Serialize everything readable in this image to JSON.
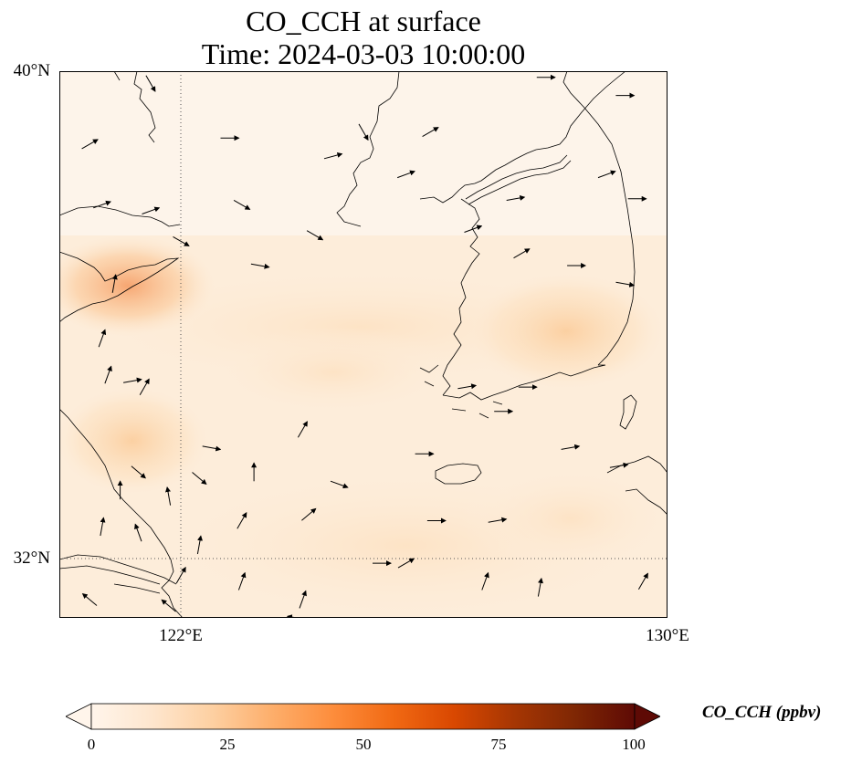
{
  "title": {
    "line1": "CO_CCH at surface",
    "line2": "Time: 2024-03-03 10:00:00"
  },
  "map": {
    "lat_labels": [
      "40°N",
      "32°N"
    ],
    "lon_labels": [
      "122°E",
      "130°E"
    ],
    "extent": {
      "lon_min": 120,
      "lon_max": 130,
      "lat_min": 31,
      "lat_max": 40
    },
    "gridlines": {
      "lat": [
        32
      ],
      "lon": [
        122
      ]
    },
    "coastline_color": "#000000",
    "wind_vectors": [
      [
        121.5,
        39.8,
        60
      ],
      [
        120.5,
        38.8,
        -30
      ],
      [
        122.8,
        38.9,
        0
      ],
      [
        124.5,
        38.6,
        -15
      ],
      [
        125.0,
        39.0,
        60
      ],
      [
        125.7,
        38.3,
        -20
      ],
      [
        120.7,
        37.8,
        -20
      ],
      [
        121.5,
        37.7,
        -20
      ],
      [
        122.0,
        37.2,
        30
      ],
      [
        123.0,
        37.8,
        30
      ],
      [
        123.3,
        36.8,
        10
      ],
      [
        124.2,
        37.3,
        30
      ],
      [
        126.8,
        37.4,
        -20
      ],
      [
        127.6,
        37.0,
        -30
      ],
      [
        128.5,
        36.8,
        0
      ],
      [
        129.3,
        36.5,
        10
      ],
      [
        127.5,
        37.9,
        -10
      ],
      [
        128.0,
        39.9,
        0
      ],
      [
        129.3,
        39.6,
        0
      ],
      [
        129.0,
        38.3,
        -20
      ],
      [
        129.5,
        37.9,
        0
      ],
      [
        126.1,
        39.0,
        -30
      ],
      [
        120.7,
        35.6,
        -70
      ],
      [
        120.8,
        35.0,
        -70
      ],
      [
        121.2,
        34.9,
        -10
      ],
      [
        121.4,
        34.8,
        -60
      ],
      [
        122.5,
        33.8,
        10
      ],
      [
        123.2,
        33.4,
        -90
      ],
      [
        124.0,
        34.1,
        -60
      ],
      [
        124.6,
        33.2,
        20
      ],
      [
        126.7,
        34.8,
        -10
      ],
      [
        127.3,
        34.4,
        0
      ],
      [
        127.7,
        34.8,
        0
      ],
      [
        128.4,
        33.8,
        -10
      ],
      [
        129.2,
        33.5,
        -10
      ],
      [
        121.8,
        33.0,
        -100
      ],
      [
        122.3,
        32.2,
        -80
      ],
      [
        121.3,
        32.4,
        -110
      ],
      [
        123.0,
        32.6,
        -60
      ],
      [
        124.1,
        32.7,
        -40
      ],
      [
        126.0,
        33.7,
        0
      ],
      [
        127.2,
        32.6,
        -10
      ],
      [
        125.3,
        31.9,
        0
      ],
      [
        126.2,
        32.6,
        0
      ],
      [
        122.0,
        31.7,
        -60
      ],
      [
        123.0,
        31.6,
        -70
      ],
      [
        124.0,
        31.3,
        -70
      ],
      [
        125.7,
        31.9,
        -30
      ],
      [
        120.7,
        32.5,
        -80
      ],
      [
        127.9,
        31.5,
        -80
      ],
      [
        127.0,
        31.6,
        -70
      ],
      [
        121.8,
        31.2,
        -140
      ],
      [
        120.5,
        31.3,
        -140
      ],
      [
        123.9,
        31.0,
        -170
      ],
      [
        129.6,
        31.6,
        -60
      ],
      [
        121.3,
        33.4,
        40
      ],
      [
        122.3,
        33.3,
        40
      ],
      [
        120.9,
        36.5,
        -80
      ],
      [
        121.0,
        33.1,
        -90
      ]
    ]
  },
  "colorbar": {
    "label": "CO_CCH (ppbv)",
    "ticks": [
      "0",
      "25",
      "50",
      "75",
      "100"
    ],
    "min": 0,
    "max": 100,
    "colors": [
      "#fff5eb",
      "#fee6ce",
      "#fdd0a2",
      "#fdae6b",
      "#fd8d3c",
      "#f16913",
      "#d94801",
      "#a63603",
      "#7f2704",
      "#5e0a05"
    ]
  }
}
